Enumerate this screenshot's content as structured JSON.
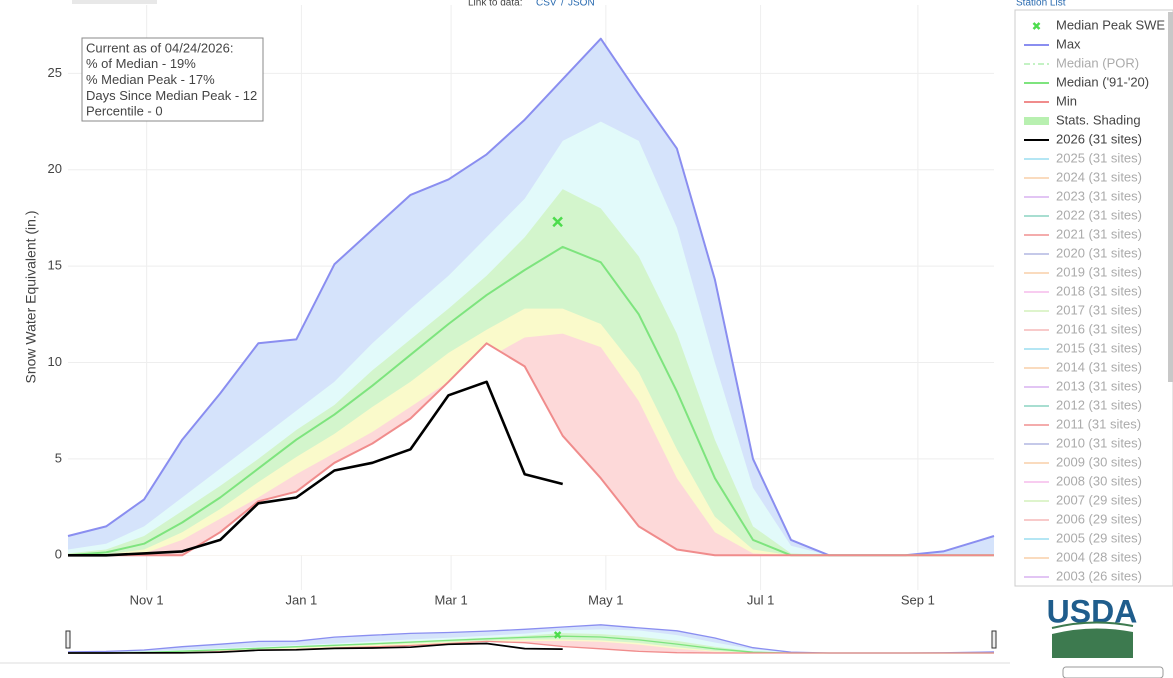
{
  "header": {
    "link_label": "Link to data:",
    "csv": "CSV",
    "separator": "/",
    "json": "JSON",
    "station_list": "Station List"
  },
  "logo": {
    "text": "USDA"
  },
  "chart_data": {
    "type": "area",
    "y_label": "Snow Water Equivalent (in.)",
    "annotation": [
      "Current as of 04/24/2026:",
      "% of Median - 19%",
      "% Median Peak - 17%",
      "Days Since Median Peak - 12",
      "Percentile - 0"
    ],
    "x": [
      0,
      15,
      30,
      45,
      60,
      75,
      90,
      105,
      120,
      135,
      150,
      165,
      180,
      195,
      210,
      225,
      240,
      255,
      270,
      285,
      300,
      315,
      330,
      345,
      360,
      365
    ],
    "xlim": [
      0,
      365
    ],
    "xticks": [
      {
        "value": 31,
        "label": "Nov 1"
      },
      {
        "value": 92,
        "label": "Jan 1"
      },
      {
        "value": 151,
        "label": "Mar 1"
      },
      {
        "value": 212,
        "label": "May 1"
      },
      {
        "value": 273,
        "label": "Jul 1"
      },
      {
        "value": 335,
        "label": "Sep 1"
      }
    ],
    "ylim": [
      -1.8,
      28.55
    ],
    "yticks": [
      0,
      5,
      10,
      15,
      20,
      25
    ],
    "grid": true,
    "peak": {
      "name": "Median Peak SWE",
      "x": 193,
      "value": 17.3,
      "color": "#4ddc4d"
    },
    "series": [
      {
        "name": "Max",
        "color": "#8a8ef0",
        "fill": "#d5e3fb",
        "values": [
          1.0,
          1.5,
          2.9,
          6.0,
          8.4,
          11.0,
          11.2,
          15.1,
          16.9,
          18.7,
          19.5,
          20.8,
          22.6,
          24.7,
          26.8,
          23.9,
          21.1,
          14.3,
          5.0,
          0.8,
          0,
          0,
          0,
          0.2,
          0.8,
          1.0
        ]
      },
      {
        "name": "Median ('91-'20)",
        "color": "#7ee47e",
        "values": [
          0,
          0.15,
          0.6,
          1.7,
          3.0,
          4.5,
          6.0,
          7.3,
          8.8,
          10.4,
          12.0,
          13.5,
          14.8,
          16.0,
          15.2,
          12.5,
          8.5,
          4.0,
          0.8,
          0,
          0,
          0,
          0,
          0,
          0,
          0
        ]
      },
      {
        "name": "Min",
        "color": "#f08c8c",
        "values": [
          0,
          0,
          0,
          0,
          1.2,
          2.8,
          3.3,
          4.8,
          5.8,
          7.1,
          9.0,
          11.0,
          9.8,
          6.2,
          4.0,
          1.5,
          0.3,
          0,
          0,
          0,
          0,
          0,
          0,
          0,
          0,
          0
        ]
      },
      {
        "name": "2026 (31 sites)",
        "color": "#000000",
        "values": [
          0,
          0,
          0.1,
          0.2,
          0.8,
          2.7,
          3.0,
          4.4,
          4.8,
          5.5,
          8.3,
          9.0,
          4.2,
          3.7,
          null,
          null,
          null,
          null,
          null,
          null,
          null,
          null,
          null,
          null,
          null,
          null
        ]
      }
    ],
    "stats_shading": {
      "name": "Stats. Shading",
      "color": "#b8f0b0",
      "bands": [
        {
          "fill": "#e2fafa",
          "values": [
            0.3,
            0.6,
            1.5,
            3.0,
            4.5,
            6.0,
            7.5,
            9.0,
            11.0,
            12.8,
            14.5,
            16.5,
            18.5,
            21.5,
            22.5,
            21.5,
            17.0,
            10.0,
            3.5,
            0.5,
            0,
            0,
            0,
            0,
            0,
            0
          ]
        },
        {
          "fill": "#d3f5cc",
          "values": [
            0.1,
            0.3,
            1.0,
            2.3,
            3.6,
            5.0,
            6.5,
            7.8,
            9.6,
            11.2,
            12.8,
            14.5,
            16.5,
            19.0,
            18.0,
            15.5,
            11.5,
            6.0,
            1.5,
            0.1,
            0,
            0,
            0,
            0,
            0,
            0
          ]
        },
        {
          "fill": "#fafacb",
          "values": [
            0,
            0.05,
            0.3,
            1.2,
            2.4,
            3.8,
            5.1,
            6.3,
            7.7,
            9.0,
            10.5,
            11.7,
            12.8,
            12.8,
            12.0,
            9.5,
            5.5,
            2.0,
            0.3,
            0,
            0,
            0,
            0,
            0,
            0,
            0
          ]
        },
        {
          "fill": "#fdd9d9",
          "values": [
            0,
            0,
            0.1,
            0.8,
            1.9,
            3.0,
            4.2,
            5.3,
            6.4,
            7.7,
            9.0,
            10.2,
            11.3,
            11.5,
            10.8,
            8.0,
            4.0,
            1.2,
            0.1,
            0,
            0,
            0,
            0,
            0,
            0,
            0
          ]
        }
      ]
    },
    "hidden_series": [
      {
        "name": "Median (POR)",
        "color": "#7ee47e"
      },
      {
        "name": "2025 (31 sites)",
        "color": "#5bc8e8"
      },
      {
        "name": "2024 (31 sites)",
        "color": "#f5b070"
      },
      {
        "name": "2023 (31 sites)",
        "color": "#c080e8"
      },
      {
        "name": "2022 (31 sites)",
        "color": "#40b89a"
      },
      {
        "name": "2021 (31 sites)",
        "color": "#e84a4a"
      },
      {
        "name": "2020 (31 sites)",
        "color": "#8088d0"
      },
      {
        "name": "2019 (31 sites)",
        "color": "#f5b070"
      },
      {
        "name": "2018 (31 sites)",
        "color": "#f090e0"
      },
      {
        "name": "2017 (31 sites)",
        "color": "#b8e890"
      },
      {
        "name": "2016 (31 sites)",
        "color": "#f08c8c"
      },
      {
        "name": "2015 (31 sites)",
        "color": "#5bc8e8"
      },
      {
        "name": "2014 (31 sites)",
        "color": "#f5b070"
      },
      {
        "name": "2013 (31 sites)",
        "color": "#c080e8"
      },
      {
        "name": "2012 (31 sites)",
        "color": "#40b89a"
      },
      {
        "name": "2011 (31 sites)",
        "color": "#e84a4a"
      },
      {
        "name": "2010 (31 sites)",
        "color": "#8088d0"
      },
      {
        "name": "2009 (30 sites)",
        "color": "#f5b070"
      },
      {
        "name": "2008 (30 sites)",
        "color": "#f090e0"
      },
      {
        "name": "2007 (29 sites)",
        "color": "#b8e890"
      },
      {
        "name": "2006 (29 sites)",
        "color": "#f08c8c"
      },
      {
        "name": "2005 (29 sites)",
        "color": "#5bc8e8"
      },
      {
        "name": "2004 (28 sites)",
        "color": "#f5b070"
      },
      {
        "name": "2003 (26 sites)",
        "color": "#c080e8"
      }
    ]
  }
}
